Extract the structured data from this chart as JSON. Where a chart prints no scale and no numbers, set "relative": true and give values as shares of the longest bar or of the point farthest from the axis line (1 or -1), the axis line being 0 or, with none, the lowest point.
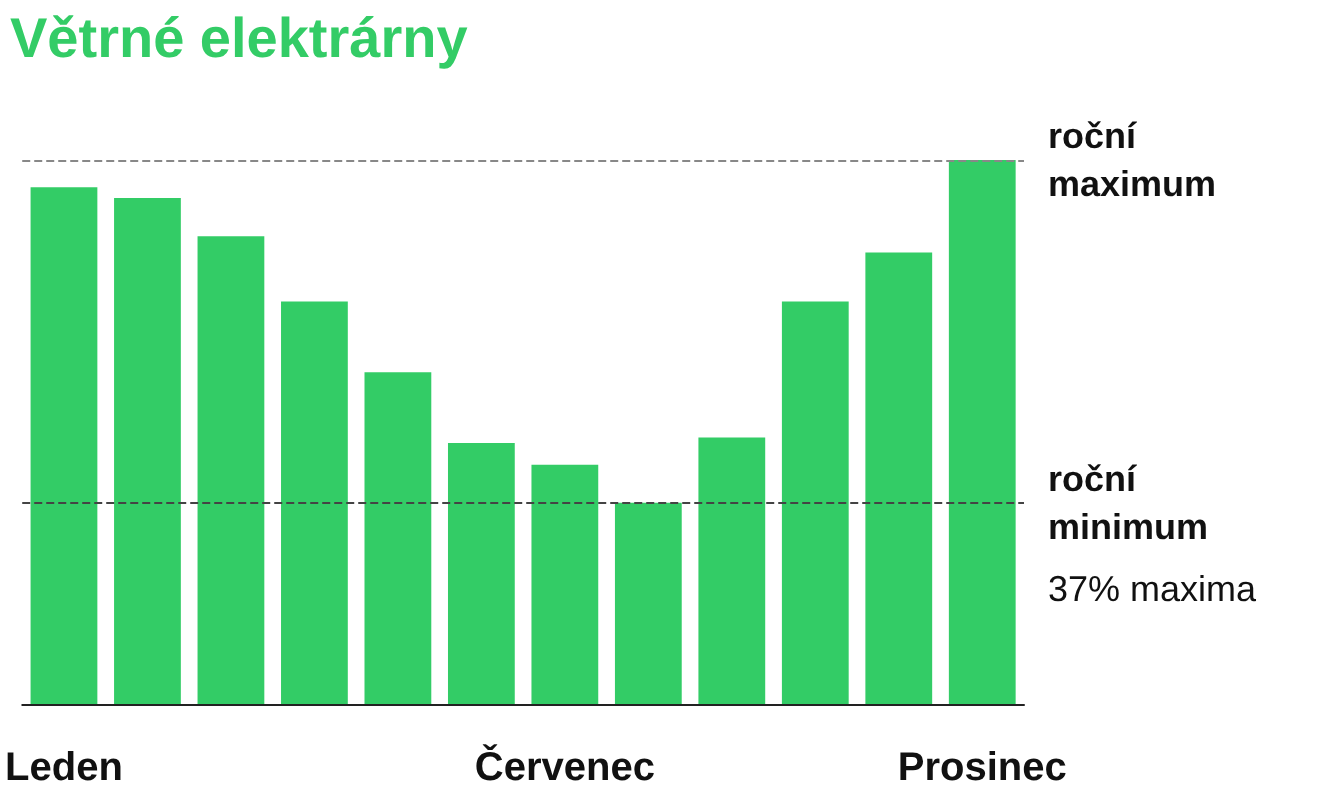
{
  "chart_data": {
    "type": "bar",
    "title": "Větrné elektrárny",
    "categories": [
      "Leden",
      null,
      null,
      null,
      null,
      null,
      "Červenec",
      null,
      null,
      null,
      null,
      "Prosinec"
    ],
    "values": [
      0.95,
      0.93,
      0.86,
      0.74,
      0.61,
      0.48,
      0.44,
      0.37,
      0.49,
      0.74,
      0.83,
      1
    ],
    "color": "#33cc66",
    "relative": true,
    "ref_lines": [
      {
        "axis": "y",
        "value": 1,
        "label": "roční maximum",
        "color": "#888888",
        "line_style": "dashed"
      },
      {
        "axis": "y",
        "value": 0.37,
        "label": "roční minimum",
        "color": "#444444",
        "line_style": "dashed"
      }
    ],
    "annotations": [
      "37% maxima"
    ]
  }
}
